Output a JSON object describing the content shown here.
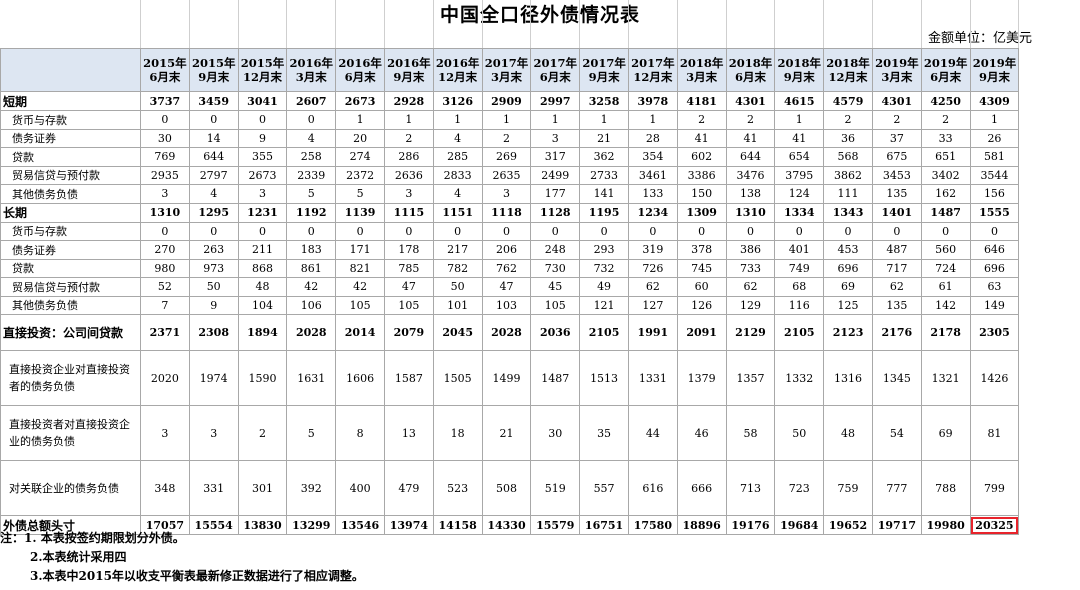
{
  "title": "中国全口径外债情况表",
  "unit": "金额单位：亿美元",
  "columns": [
    "2015年6月末",
    "2015年9月末",
    "2015年12月末",
    "2016年3月末",
    "2016年6月末",
    "2016年9月末",
    "2016年12月末",
    "2017年3月末",
    "2017年6月末",
    "2017年9月末",
    "2017年12月末",
    "2018年3月末",
    "2018年6月末",
    "2018年9月末",
    "2018年12月末",
    "2019年3月末",
    "2019年6月末",
    "2019年9月末"
  ],
  "rows": [
    {
      "label": "短期",
      "kind": "bold",
      "values": [
        "3737",
        "3459",
        "3041",
        "2607",
        "2673",
        "2928",
        "3126",
        "2909",
        "2997",
        "3258",
        "3978",
        "4181",
        "4301",
        "4615",
        "4579",
        "4301",
        "4250",
        "4309"
      ]
    },
    {
      "label": "货币与存款",
      "kind": "sub",
      "values": [
        "0",
        "0",
        "0",
        "0",
        "1",
        "1",
        "1",
        "1",
        "1",
        "1",
        "1",
        "2",
        "2",
        "1",
        "2",
        "2",
        "2",
        "1"
      ]
    },
    {
      "label": "债务证券",
      "kind": "sub",
      "values": [
        "30",
        "14",
        "9",
        "4",
        "20",
        "2",
        "4",
        "2",
        "3",
        "21",
        "28",
        "41",
        "41",
        "41",
        "36",
        "37",
        "33",
        "26"
      ]
    },
    {
      "label": "贷款",
      "kind": "sub",
      "values": [
        "769",
        "644",
        "355",
        "258",
        "274",
        "286",
        "285",
        "269",
        "317",
        "362",
        "354",
        "602",
        "644",
        "654",
        "568",
        "675",
        "651",
        "581"
      ]
    },
    {
      "label": "贸易信贷与预付款",
      "kind": "sub",
      "values": [
        "2935",
        "2797",
        "2673",
        "2339",
        "2372",
        "2636",
        "2833",
        "2635",
        "2499",
        "2733",
        "3461",
        "3386",
        "3476",
        "3795",
        "3862",
        "3453",
        "3402",
        "3544"
      ]
    },
    {
      "label": "其他债务负债",
      "kind": "sub",
      "values": [
        "3",
        "4",
        "3",
        "5",
        "5",
        "3",
        "4",
        "3",
        "177",
        "141",
        "133",
        "150",
        "138",
        "124",
        "111",
        "135",
        "162",
        "156"
      ]
    },
    {
      "label": "长期",
      "kind": "bold",
      "values": [
        "1310",
        "1295",
        "1231",
        "1192",
        "1139",
        "1115",
        "1151",
        "1118",
        "1128",
        "1195",
        "1234",
        "1309",
        "1310",
        "1334",
        "1343",
        "1401",
        "1487",
        "1555"
      ]
    },
    {
      "label": "货币与存款",
      "kind": "sub",
      "values": [
        "0",
        "0",
        "0",
        "0",
        "0",
        "0",
        "0",
        "0",
        "0",
        "0",
        "0",
        "0",
        "0",
        "0",
        "0",
        "0",
        "0",
        "0"
      ]
    },
    {
      "label": "债务证券",
      "kind": "sub",
      "values": [
        "270",
        "263",
        "211",
        "183",
        "171",
        "178",
        "217",
        "206",
        "248",
        "293",
        "319",
        "378",
        "386",
        "401",
        "453",
        "487",
        "560",
        "646"
      ]
    },
    {
      "label": "贷款",
      "kind": "sub",
      "values": [
        "980",
        "973",
        "868",
        "861",
        "821",
        "785",
        "782",
        "762",
        "730",
        "732",
        "726",
        "745",
        "733",
        "749",
        "696",
        "717",
        "724",
        "696"
      ]
    },
    {
      "label": "贸易信贷与预付款",
      "kind": "sub",
      "values": [
        "52",
        "50",
        "48",
        "42",
        "42",
        "47",
        "50",
        "47",
        "45",
        "49",
        "62",
        "60",
        "62",
        "68",
        "69",
        "62",
        "61",
        "63"
      ]
    },
    {
      "label": "其他债务负债",
      "kind": "sub",
      "values": [
        "7",
        "9",
        "104",
        "106",
        "105",
        "105",
        "101",
        "103",
        "105",
        "121",
        "127",
        "126",
        "129",
        "116",
        "125",
        "135",
        "142",
        "149"
      ]
    },
    {
      "label": "直接投资：公司间贷款",
      "kind": "bold",
      "values": [
        "2371",
        "2308",
        "1894",
        "2028",
        "2014",
        "2079",
        "2045",
        "2028",
        "2036",
        "2105",
        "1991",
        "2091",
        "2129",
        "2105",
        "2123",
        "2176",
        "2178",
        "2305"
      ]
    },
    {
      "label": "直接投资企业对直接投资者的债务负债",
      "kind": "multi",
      "values": [
        "2020",
        "1974",
        "1590",
        "1631",
        "1606",
        "1587",
        "1505",
        "1499",
        "1487",
        "1513",
        "1331",
        "1379",
        "1357",
        "1332",
        "1316",
        "1345",
        "1321",
        "1426"
      ]
    },
    {
      "label": "直接投资者对直接投资企业的债务负债",
      "kind": "multi",
      "values": [
        "3",
        "3",
        "2",
        "5",
        "8",
        "13",
        "18",
        "21",
        "30",
        "35",
        "44",
        "46",
        "58",
        "50",
        "48",
        "54",
        "69",
        "81"
      ]
    },
    {
      "label": "对关联企业的债务负债",
      "kind": "multi",
      "values": [
        "348",
        "331",
        "301",
        "392",
        "400",
        "479",
        "523",
        "508",
        "519",
        "557",
        "616",
        "666",
        "713",
        "723",
        "759",
        "777",
        "788",
        "799"
      ]
    },
    {
      "label": "外债总额头寸",
      "kind": "bold",
      "values": [
        "17057",
        "15554",
        "13830",
        "13299",
        "13546",
        "13974",
        "14158",
        "14330",
        "15579",
        "16751",
        "17580",
        "18896",
        "19176",
        "19684",
        "19652",
        "19717",
        "19980",
        "20325"
      ]
    }
  ],
  "notes": [
    "注：1. 本表按签约期限划分外债。",
    "2.本表统计采用四",
    "3.本表中2015年以收支平衡表最新修正数据进行了相应调整。"
  ]
}
